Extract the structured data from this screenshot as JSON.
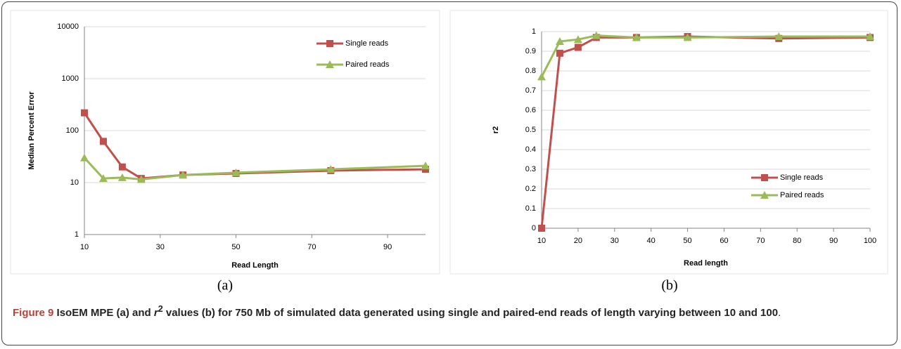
{
  "chart_data": [
    {
      "type": "line",
      "panel_label": "(a)",
      "x_label": "Read Length",
      "y_label": "Median Percent Error",
      "x": [
        10,
        15,
        20,
        25,
        36,
        50,
        75,
        100
      ],
      "series": [
        {
          "name": "Single reads",
          "color": "#c0504d",
          "marker": "square",
          "values": [
            220,
            62,
            20,
            12,
            14,
            15,
            17,
            18
          ]
        },
        {
          "name": "Paired reads",
          "color": "#9bbb59",
          "marker": "triangle",
          "values": [
            30,
            12,
            12.5,
            11.5,
            14,
            15.5,
            18,
            21
          ]
        }
      ],
      "xlim": [
        10,
        100
      ],
      "xticks": [
        10,
        30,
        50,
        70,
        90
      ],
      "ylim": [
        1,
        10000
      ],
      "yticks": [
        1,
        10,
        100,
        1000,
        10000
      ],
      "log_y": true,
      "grid": true,
      "legend": "upper right"
    },
    {
      "type": "line",
      "panel_label": "(b)",
      "x_label": "Read length",
      "y_label": "r2",
      "x": [
        10,
        15,
        20,
        25,
        36,
        50,
        75,
        100
      ],
      "series": [
        {
          "name": "Single reads",
          "color": "#c0504d",
          "marker": "square",
          "values": [
            0,
            0.89,
            0.92,
            0.97,
            0.97,
            0.975,
            0.965,
            0.97
          ]
        },
        {
          "name": "Paired reads",
          "color": "#9bbb59",
          "marker": "triangle",
          "values": [
            0.77,
            0.95,
            0.96,
            0.98,
            0.97,
            0.97,
            0.975,
            0.975
          ]
        }
      ],
      "xlim": [
        10,
        100
      ],
      "xticks": [
        10,
        20,
        30,
        40,
        50,
        60,
        70,
        80,
        90,
        100
      ],
      "ylim": [
        0,
        1
      ],
      "yticks": [
        0,
        0.1,
        0.2,
        0.3,
        0.4,
        0.5,
        0.6,
        0.7,
        0.8,
        0.9,
        1
      ],
      "log_y": false,
      "grid": true,
      "legend": "lower right"
    }
  ],
  "caption": {
    "label": "Figure 9",
    "text_before": "IsoEM MPE (a) and ",
    "symbol": "r",
    "superscript": "2",
    "text_after": " values (b) for 750 Mb of simulated data generated using single and paired-end reads of length varying between 10 and 100",
    "end": "."
  }
}
